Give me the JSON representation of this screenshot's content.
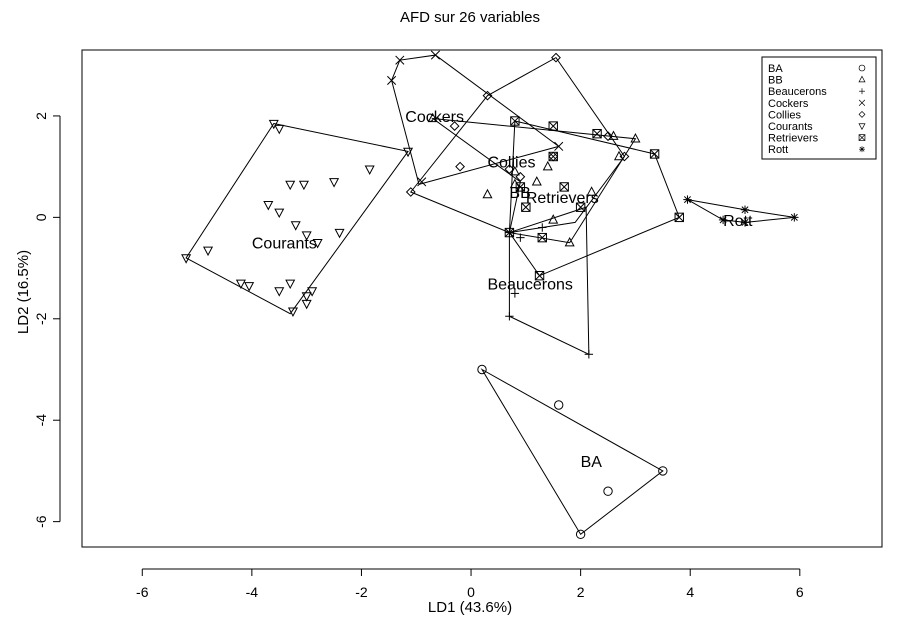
{
  "chart_data": {
    "type": "scatter",
    "title": "AFD sur 26 variables",
    "xlabel": "LD1 (43.6%)",
    "ylabel": "LD2 (16.5%)",
    "xlim": [
      -7.1,
      7.5
    ],
    "ylim": [
      -6.5,
      3.3
    ],
    "xticks": [
      -6,
      -4,
      -2,
      0,
      2,
      4,
      6
    ],
    "yticks": [
      -6,
      -4,
      -2,
      0,
      2
    ],
    "grid": false,
    "legend_position": "top-right",
    "series": [
      {
        "name": "BA",
        "marker": "circle",
        "points": [
          [
            0.2,
            -3.0
          ],
          [
            1.6,
            -3.7
          ],
          [
            2.5,
            -5.4
          ],
          [
            3.5,
            -5.0
          ],
          [
            2.0,
            -6.25
          ]
        ],
        "hull": [
          [
            0.2,
            -3.0
          ],
          [
            3.5,
            -5.0
          ],
          [
            2.0,
            -6.25
          ]
        ],
        "label_pos": [
          2.0,
          -4.8
        ]
      },
      {
        "name": "BB",
        "marker": "triangle",
        "points": [
          [
            -0.7,
            1.95
          ],
          [
            0.3,
            0.45
          ],
          [
            0.8,
            0.65
          ],
          [
            1.2,
            0.7
          ],
          [
            1.5,
            -0.05
          ],
          [
            2.6,
            1.6
          ],
          [
            3.0,
            1.55
          ],
          [
            1.8,
            -0.5
          ],
          [
            2.7,
            1.2
          ],
          [
            0.8,
            0.9
          ],
          [
            1.4,
            1.0
          ],
          [
            2.2,
            0.5
          ]
        ],
        "hull": [
          [
            -0.7,
            1.95
          ],
          [
            3.0,
            1.55
          ],
          [
            1.8,
            -0.5
          ],
          [
            0.7,
            -0.3
          ],
          [
            0.9,
            0.7
          ]
        ],
        "label_pos": [
          0.7,
          0.5
        ]
      },
      {
        "name": "Beaucerons",
        "marker": "plus",
        "points": [
          [
            0.7,
            -1.95
          ],
          [
            0.8,
            -1.5
          ],
          [
            0.9,
            -0.4
          ],
          [
            2.15,
            -2.7
          ],
          [
            0.7,
            -0.3
          ],
          [
            1.3,
            -0.2
          ]
        ],
        "hull": [
          [
            0.7,
            -0.3
          ],
          [
            2.1,
            0.2
          ],
          [
            2.15,
            -2.7
          ],
          [
            0.7,
            -1.95
          ]
        ],
        "label_pos": [
          0.3,
          -1.3
        ]
      },
      {
        "name": "Cockers",
        "marker": "x",
        "points": [
          [
            -1.45,
            2.7
          ],
          [
            -1.3,
            3.1
          ],
          [
            -0.65,
            3.2
          ],
          [
            1.6,
            1.4
          ],
          [
            -0.9,
            0.7
          ]
        ],
        "hull": [
          [
            -1.45,
            2.7
          ],
          [
            -1.3,
            3.1
          ],
          [
            -0.65,
            3.2
          ],
          [
            1.6,
            1.4
          ],
          [
            -0.95,
            0.65
          ]
        ],
        "label_pos": [
          -1.2,
          2.0
        ]
      },
      {
        "name": "Collies",
        "marker": "diamond",
        "points": [
          [
            1.55,
            3.15
          ],
          [
            0.3,
            2.4
          ],
          [
            -0.3,
            1.8
          ],
          [
            -1.1,
            0.5
          ],
          [
            -0.2,
            1.0
          ],
          [
            0.7,
            0.95
          ],
          [
            0.9,
            0.8
          ],
          [
            2.5,
            1.6
          ],
          [
            2.8,
            1.2
          ],
          [
            1.5,
            1.2
          ]
        ],
        "hull": [
          [
            1.55,
            3.15
          ],
          [
            2.8,
            1.2
          ],
          [
            1.9,
            -0.1
          ],
          [
            0.7,
            -0.3
          ],
          [
            -1.1,
            0.5
          ],
          [
            0.3,
            2.4
          ]
        ],
        "label_pos": [
          0.3,
          1.1
        ]
      },
      {
        "name": "Courants",
        "marker": "triangle-down",
        "points": [
          [
            -3.6,
            1.85
          ],
          [
            -3.5,
            1.75
          ],
          [
            -1.15,
            1.3
          ],
          [
            -1.85,
            0.95
          ],
          [
            -2.5,
            0.7
          ],
          [
            -3.05,
            0.65
          ],
          [
            -3.3,
            0.65
          ],
          [
            -3.7,
            0.25
          ],
          [
            -3.5,
            0.1
          ],
          [
            -3.2,
            -0.15
          ],
          [
            -3.0,
            -0.35
          ],
          [
            -2.4,
            -0.3
          ],
          [
            -2.8,
            -0.5
          ],
          [
            -4.8,
            -0.65
          ],
          [
            -5.2,
            -0.8
          ],
          [
            -4.2,
            -1.3
          ],
          [
            -4.05,
            -1.35
          ],
          [
            -3.3,
            -1.3
          ],
          [
            -3.5,
            -1.45
          ],
          [
            -3.0,
            -1.55
          ],
          [
            -3.25,
            -1.85
          ],
          [
            -3.0,
            -1.7
          ],
          [
            -2.9,
            -1.45
          ]
        ],
        "hull": [
          [
            -3.6,
            1.85
          ],
          [
            -1.15,
            1.3
          ],
          [
            -3.3,
            -1.9
          ],
          [
            -5.2,
            -0.8
          ]
        ],
        "label_pos": [
          -4.0,
          -0.5
        ]
      },
      {
        "name": "Retrievers",
        "marker": "square-x",
        "points": [
          [
            0.8,
            1.9
          ],
          [
            1.5,
            1.8
          ],
          [
            2.3,
            1.65
          ],
          [
            3.35,
            1.25
          ],
          [
            1.5,
            1.2
          ],
          [
            1.0,
            0.2
          ],
          [
            2.0,
            0.2
          ],
          [
            1.3,
            -0.4
          ],
          [
            0.7,
            -0.3
          ],
          [
            3.8,
            0.0
          ],
          [
            1.25,
            -1.15
          ],
          [
            0.9,
            0.6
          ],
          [
            1.7,
            0.6
          ]
        ],
        "hull": [
          [
            0.8,
            1.9
          ],
          [
            3.35,
            1.25
          ],
          [
            3.8,
            0.0
          ],
          [
            1.25,
            -1.15
          ],
          [
            0.7,
            -0.3
          ]
        ],
        "label_pos": [
          1.0,
          0.4
        ]
      },
      {
        "name": "Rott",
        "marker": "asterisk",
        "points": [
          [
            3.95,
            0.35
          ],
          [
            4.6,
            -0.05
          ],
          [
            5.0,
            0.15
          ],
          [
            5.0,
            -0.1
          ],
          [
            5.9,
            0.0
          ]
        ],
        "hull": [
          [
            3.95,
            0.35
          ],
          [
            5.0,
            0.15
          ],
          [
            5.9,
            0.0
          ],
          [
            5.0,
            -0.1
          ],
          [
            4.6,
            -0.05
          ]
        ],
        "label_pos": [
          4.6,
          -0.05
        ]
      }
    ]
  }
}
